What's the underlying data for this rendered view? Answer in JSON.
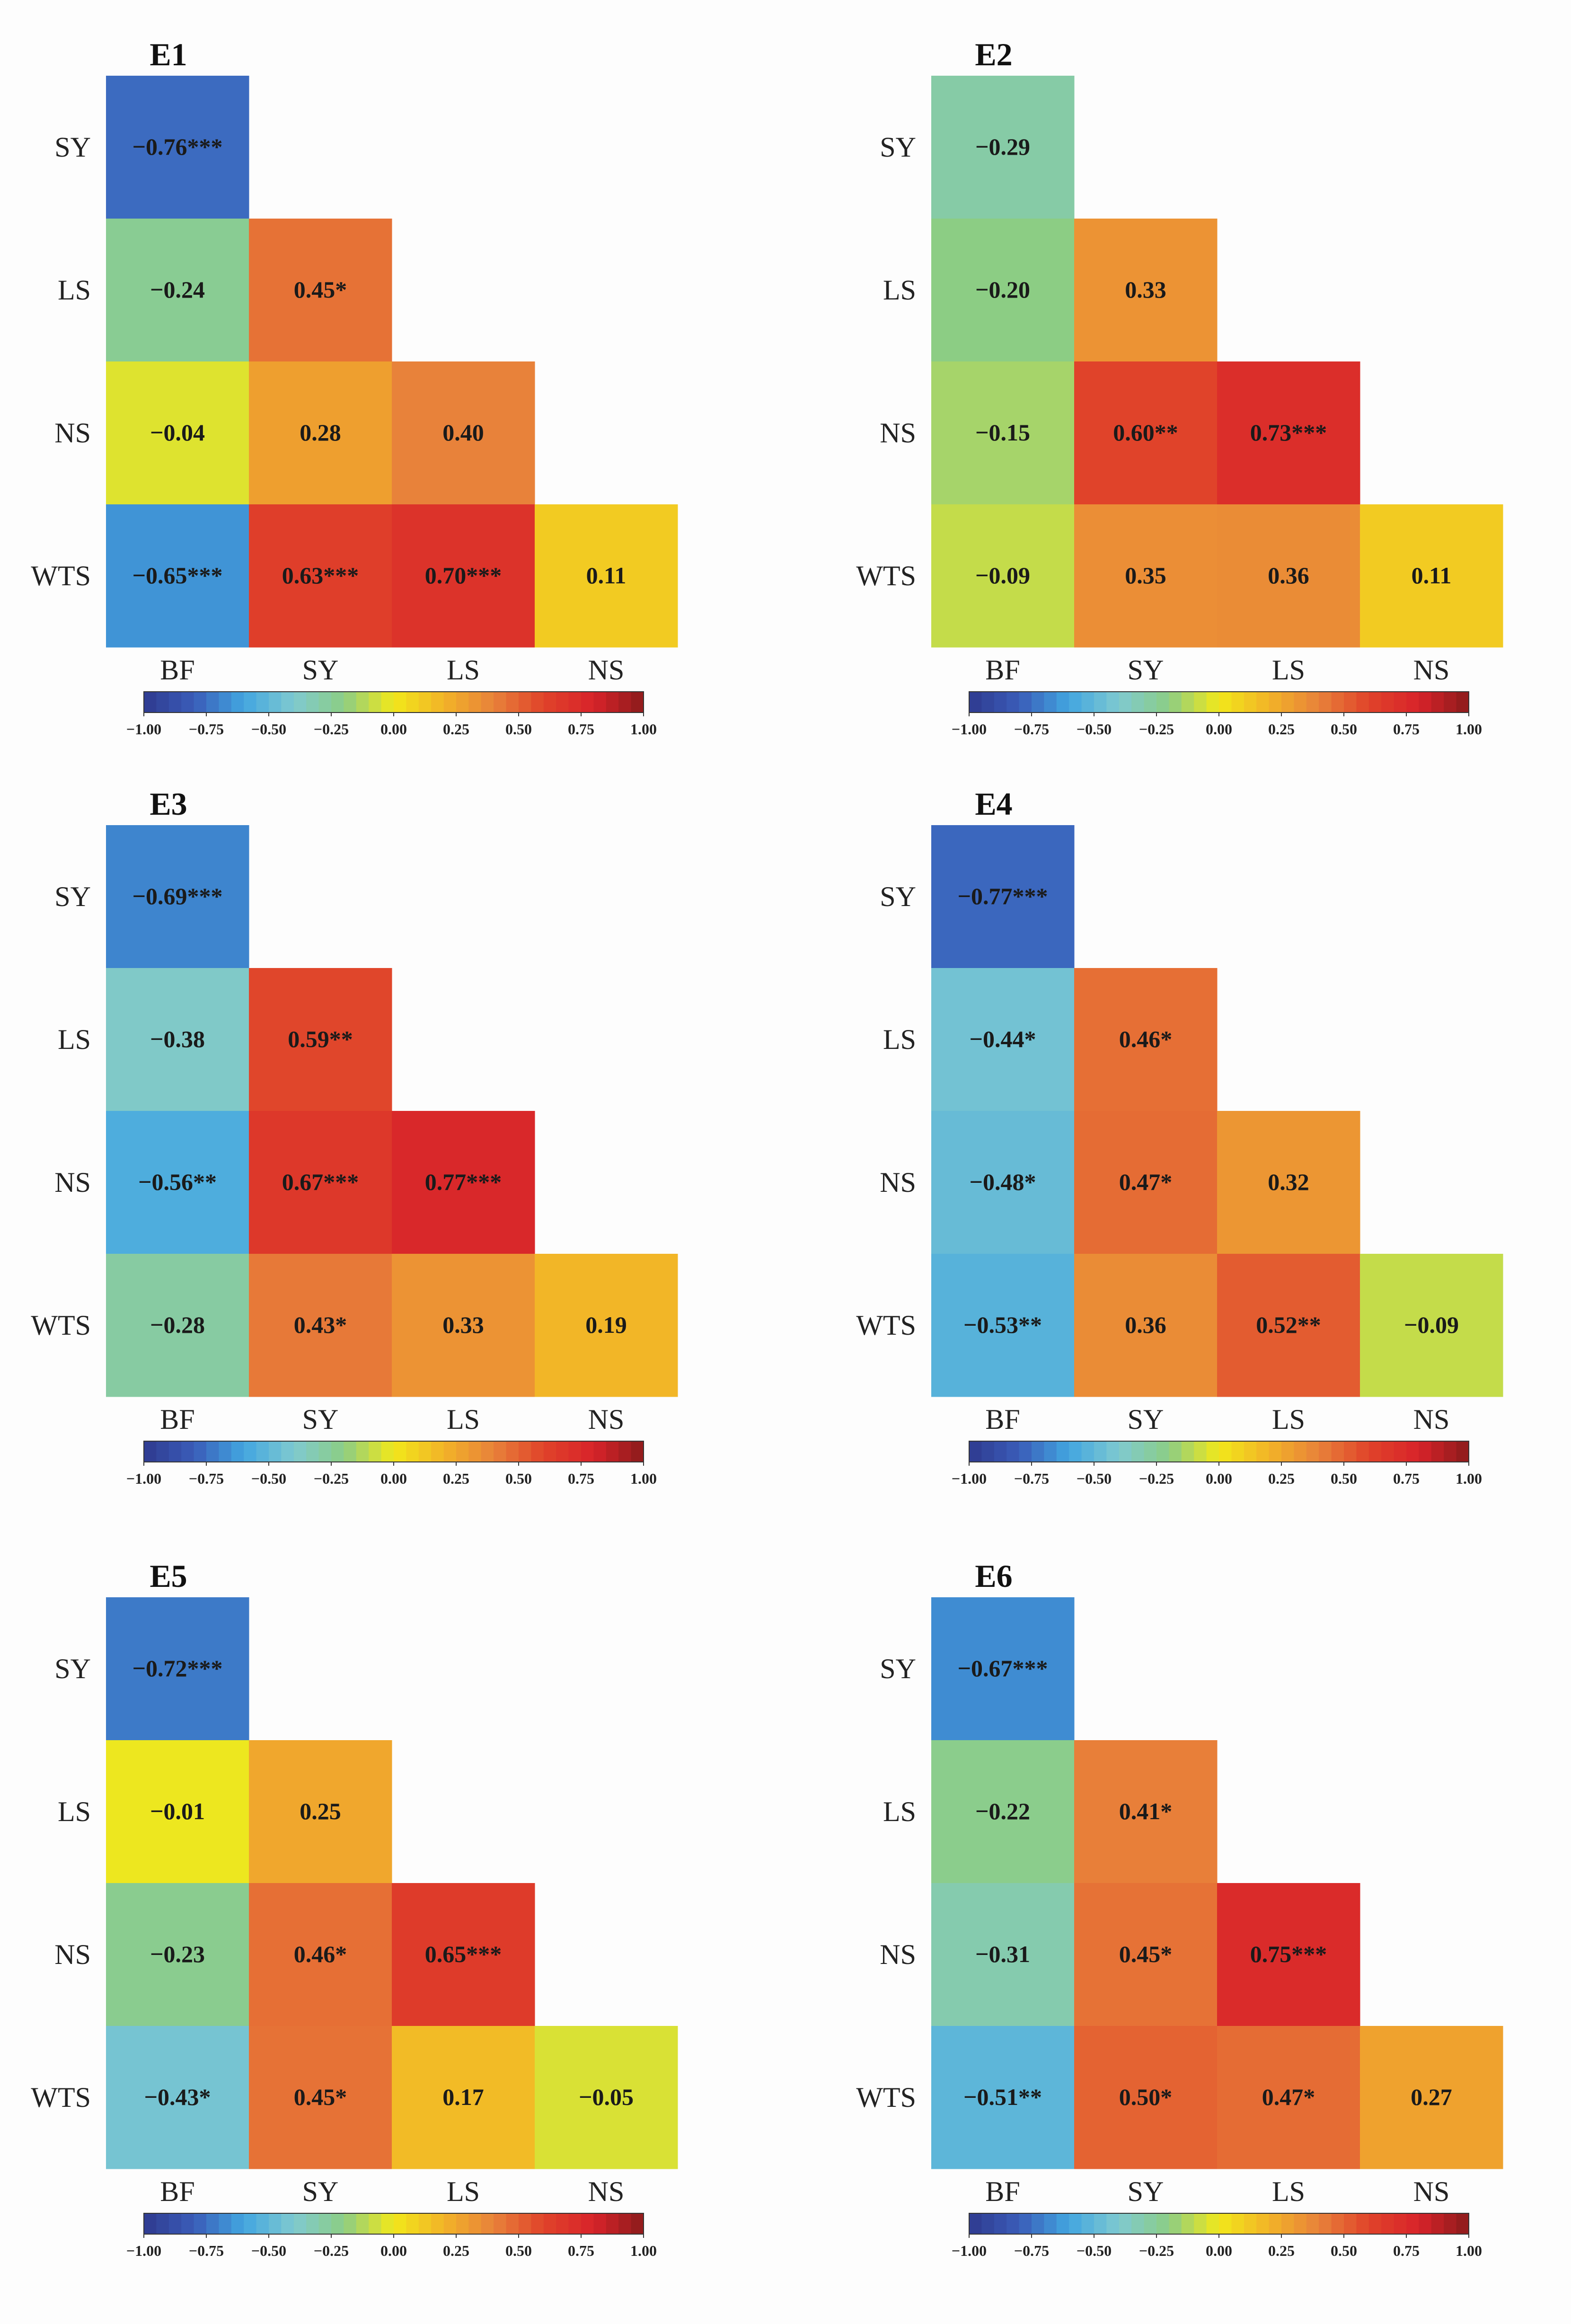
{
  "chart_data": [
    {
      "type": "heatmap",
      "title": "E1",
      "rows": [
        "SY",
        "LS",
        "NS",
        "WTS"
      ],
      "columns": [
        "BF",
        "SY",
        "LS",
        "NS"
      ],
      "cells": [
        [
          {
            "value": -0.76,
            "label": "-0.76***"
          }
        ],
        [
          {
            "value": -0.24,
            "label": "-0.24"
          },
          {
            "value": 0.45,
            "label": "0.45*"
          }
        ],
        [
          {
            "value": -0.04,
            "label": "-0.04"
          },
          {
            "value": 0.28,
            "label": "0.28"
          },
          {
            "value": 0.4,
            "label": "0.40"
          }
        ],
        [
          {
            "value": -0.65,
            "label": "-0.65***"
          },
          {
            "value": 0.63,
            "label": "0.63***"
          },
          {
            "value": 0.7,
            "label": "0.70***"
          },
          {
            "value": 0.11,
            "label": "0.11"
          }
        ]
      ]
    },
    {
      "type": "heatmap",
      "title": "E2",
      "rows": [
        "SY",
        "LS",
        "NS",
        "WTS"
      ],
      "columns": [
        "BF",
        "SY",
        "LS",
        "NS"
      ],
      "cells": [
        [
          {
            "value": -0.29,
            "label": "-0.29"
          }
        ],
        [
          {
            "value": -0.2,
            "label": "-0.20"
          },
          {
            "value": 0.33,
            "label": "0.33"
          }
        ],
        [
          {
            "value": -0.15,
            "label": "-0.15"
          },
          {
            "value": 0.6,
            "label": "0.60**"
          },
          {
            "value": 0.73,
            "label": "0.73***"
          }
        ],
        [
          {
            "value": -0.09,
            "label": "-0.09"
          },
          {
            "value": 0.35,
            "label": "0.35"
          },
          {
            "value": 0.36,
            "label": "0.36"
          },
          {
            "value": 0.11,
            "label": "0.11"
          }
        ]
      ]
    },
    {
      "type": "heatmap",
      "title": "E3",
      "rows": [
        "SY",
        "LS",
        "NS",
        "WTS"
      ],
      "columns": [
        "BF",
        "SY",
        "LS",
        "NS"
      ],
      "cells": [
        [
          {
            "value": -0.69,
            "label": "-0.69***"
          }
        ],
        [
          {
            "value": -0.38,
            "label": "-0.38"
          },
          {
            "value": 0.59,
            "label": "0.59**"
          }
        ],
        [
          {
            "value": -0.56,
            "label": "-0.56**"
          },
          {
            "value": 0.67,
            "label": "0.67***"
          },
          {
            "value": 0.77,
            "label": "0.77***"
          }
        ],
        [
          {
            "value": -0.28,
            "label": "-0.28"
          },
          {
            "value": 0.43,
            "label": "0.43*"
          },
          {
            "value": 0.33,
            "label": "0.33"
          },
          {
            "value": 0.19,
            "label": "0.19"
          }
        ]
      ]
    },
    {
      "type": "heatmap",
      "title": "E4",
      "rows": [
        "SY",
        "LS",
        "NS",
        "WTS"
      ],
      "columns": [
        "BF",
        "SY",
        "LS",
        "NS"
      ],
      "cells": [
        [
          {
            "value": -0.77,
            "label": "-0.77***"
          }
        ],
        [
          {
            "value": -0.44,
            "label": "-0.44*"
          },
          {
            "value": 0.46,
            "label": "0.46*"
          }
        ],
        [
          {
            "value": -0.48,
            "label": "-0.48*"
          },
          {
            "value": 0.47,
            "label": "0.47*"
          },
          {
            "value": 0.32,
            "label": "0.32"
          }
        ],
        [
          {
            "value": -0.53,
            "label": "-0.53**"
          },
          {
            "value": 0.36,
            "label": "0.36"
          },
          {
            "value": 0.52,
            "label": "0.52**"
          },
          {
            "value": -0.09,
            "label": "-0.09"
          }
        ]
      ]
    },
    {
      "type": "heatmap",
      "title": "E5",
      "rows": [
        "SY",
        "LS",
        "NS",
        "WTS"
      ],
      "columns": [
        "BF",
        "SY",
        "LS",
        "NS"
      ],
      "cells": [
        [
          {
            "value": -0.72,
            "label": "-0.72***"
          }
        ],
        [
          {
            "value": -0.01,
            "label": "-0.01"
          },
          {
            "value": 0.25,
            "label": "0.25"
          }
        ],
        [
          {
            "value": -0.23,
            "label": "-0.23"
          },
          {
            "value": 0.46,
            "label": "0.46*"
          },
          {
            "value": 0.65,
            "label": "0.65***"
          }
        ],
        [
          {
            "value": -0.43,
            "label": "-0.43*"
          },
          {
            "value": 0.45,
            "label": "0.45*"
          },
          {
            "value": 0.17,
            "label": "0.17"
          },
          {
            "value": -0.05,
            "label": "-0.05"
          }
        ]
      ]
    },
    {
      "type": "heatmap",
      "title": "E6",
      "rows": [
        "SY",
        "LS",
        "NS",
        "WTS"
      ],
      "columns": [
        "BF",
        "SY",
        "LS",
        "NS"
      ],
      "cells": [
        [
          {
            "value": -0.67,
            "label": "-0.67***"
          }
        ],
        [
          {
            "value": -0.22,
            "label": "-0.22"
          },
          {
            "value": 0.41,
            "label": "0.41*"
          }
        ],
        [
          {
            "value": -0.31,
            "label": "-0.31"
          },
          {
            "value": 0.45,
            "label": "0.45*"
          },
          {
            "value": 0.75,
            "label": "0.75***"
          }
        ],
        [
          {
            "value": -0.51,
            "label": "-0.51**"
          },
          {
            "value": 0.5,
            "label": "0.50*"
          },
          {
            "value": 0.47,
            "label": "0.47*"
          },
          {
            "value": 0.27,
            "label": "0.27"
          }
        ]
      ]
    }
  ],
  "colorbar": {
    "range": [
      -1,
      1
    ],
    "ticks": [
      "-1.00",
      "-0.75",
      "-0.50",
      "-0.25",
      "0.00",
      "0.25",
      "0.50",
      "0.75",
      "1.00"
    ],
    "colormap": "jet",
    "colors": [
      "#2f3a8f",
      "#3a5cb8",
      "#42a6e0",
      "#7fc9d0",
      "#8ccd84",
      "#f2e81a",
      "#f2b328",
      "#e8823a",
      "#e0432a",
      "#d8232a",
      "#8b1b1b"
    ]
  }
}
